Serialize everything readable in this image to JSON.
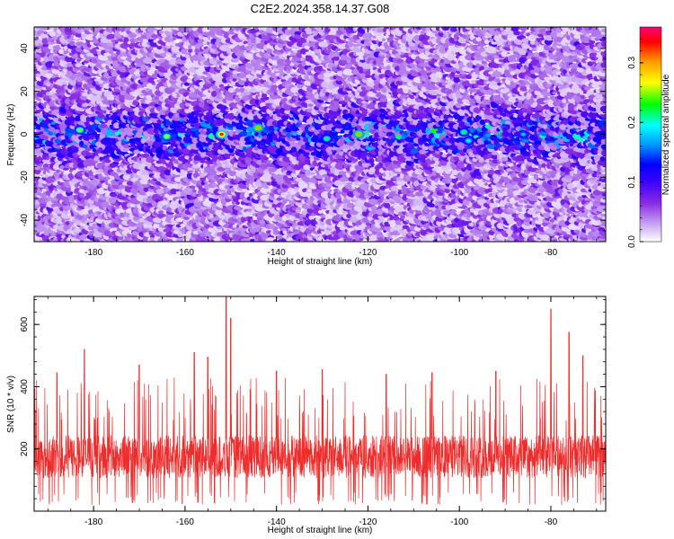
{
  "title": "C2E2.2024.358.14.37.G08",
  "chart_data": [
    {
      "type": "heatmap",
      "xlabel": "Height of straight line (km)",
      "ylabel": "Frequency (Hz)",
      "xlim": [
        -193,
        -68
      ],
      "ylim": [
        -50,
        50
      ],
      "xticks": [
        -180,
        -160,
        -140,
        -120,
        -100,
        -80
      ],
      "yticks": [
        -40,
        -20,
        0,
        20,
        40
      ],
      "colorbar": {
        "label": "Normalized spectral amplitude",
        "range": [
          0,
          0.36
        ],
        "ticks": [
          0.0,
          0.1,
          0.2,
          0.3
        ],
        "tick_labels": [
          "0.0",
          "0.1",
          "0.2",
          "0.3"
        ],
        "colormap": [
          "#ffffff",
          "#c9a6f2",
          "#8a2be2",
          "#3a00ff",
          "#0000ff",
          "#0096ff",
          "#00ffff",
          "#00ff00",
          "#ffff00",
          "#ff9900",
          "#ff0000",
          "#ff0077"
        ]
      },
      "description": "Diffuse low-amplitude (purple) speckle across all frequencies; higher-amplitude band concentrated near 0 Hz (about -10 to +10 Hz).",
      "band": {
        "center_hz": 0,
        "half_width_hz": 10
      },
      "peaks": [
        {
          "x": -152,
          "y": 0,
          "amp": 0.33
        },
        {
          "x": -144,
          "y": 3,
          "amp": 0.3
        },
        {
          "x": -122,
          "y": 0,
          "amp": 0.3
        },
        {
          "x": -164,
          "y": -1,
          "amp": 0.26
        },
        {
          "x": -183,
          "y": 2,
          "amp": 0.25
        },
        {
          "x": -129,
          "y": -2,
          "amp": 0.22
        },
        {
          "x": -99,
          "y": 1,
          "amp": 0.22
        },
        {
          "x": -98,
          "y": -3,
          "amp": 0.2
        },
        {
          "x": -86,
          "y": 0,
          "amp": 0.18
        }
      ],
      "grid": false
    },
    {
      "type": "line",
      "xlabel": "Height of straight line (km)",
      "ylabel": "SNR (10 * v/v)",
      "xlim": [
        -193,
        -68
      ],
      "ylim": [
        0,
        690
      ],
      "xticks": [
        -180,
        -160,
        -140,
        -120,
        -100,
        -80
      ],
      "yticks": [
        200,
        400,
        600
      ],
      "color": "#ee2c2c",
      "description": "Dense noisy SNR series fluctuating mostly between ~60 and ~300 with spikes.",
      "baseline": {
        "low": 60,
        "high": 290
      },
      "spikes": [
        {
          "x": -188,
          "y": 445
        },
        {
          "x": -182,
          "y": 520
        },
        {
          "x": -170,
          "y": 470
        },
        {
          "x": -158,
          "y": 510
        },
        {
          "x": -155,
          "y": 495
        },
        {
          "x": -151,
          "y": 690
        },
        {
          "x": -150,
          "y": 620
        },
        {
          "x": -140,
          "y": 450
        },
        {
          "x": -130,
          "y": 455
        },
        {
          "x": -116,
          "y": 440
        },
        {
          "x": -106,
          "y": 445
        },
        {
          "x": -92,
          "y": 450
        },
        {
          "x": -80,
          "y": 650
        },
        {
          "x": -76,
          "y": 575
        },
        {
          "x": -73,
          "y": 500
        }
      ],
      "grid": false
    }
  ]
}
